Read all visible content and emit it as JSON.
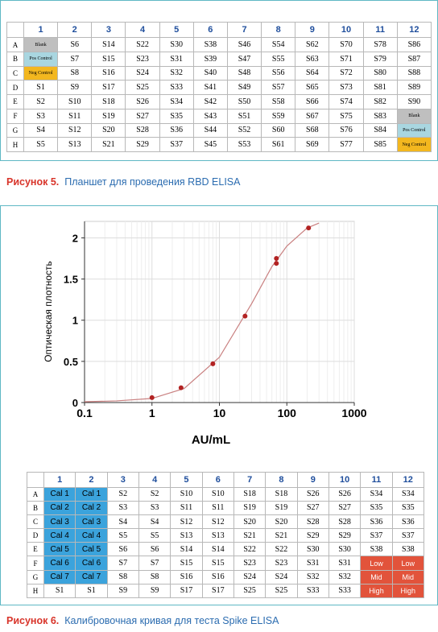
{
  "figure5": {
    "plate": {
      "columns": [
        "1",
        "2",
        "3",
        "4",
        "5",
        "6",
        "7",
        "8",
        "9",
        "10",
        "11",
        "12"
      ],
      "rows": [
        {
          "label": "A",
          "cells": [
            "Blank",
            "S6",
            "S14",
            "S22",
            "S30",
            "S38",
            "S46",
            "S54",
            "S62",
            "S70",
            "S78",
            "S86"
          ]
        },
        {
          "label": "B",
          "cells": [
            "Pos Control",
            "S7",
            "S15",
            "S23",
            "S31",
            "S39",
            "S47",
            "S55",
            "S63",
            "S71",
            "S79",
            "S87"
          ]
        },
        {
          "label": "C",
          "cells": [
            "Neg Control",
            "S8",
            "S16",
            "S24",
            "S32",
            "S40",
            "S48",
            "S56",
            "S64",
            "S72",
            "S80",
            "S88"
          ]
        },
        {
          "label": "D",
          "cells": [
            "S1",
            "S9",
            "S17",
            "S25",
            "S33",
            "S41",
            "S49",
            "S57",
            "S65",
            "S73",
            "S81",
            "S89"
          ]
        },
        {
          "label": "E",
          "cells": [
            "S2",
            "S10",
            "S18",
            "S26",
            "S34",
            "S42",
            "S50",
            "S58",
            "S66",
            "S74",
            "S82",
            "S90"
          ]
        },
        {
          "label": "F",
          "cells": [
            "S3",
            "S11",
            "S19",
            "S27",
            "S35",
            "S43",
            "S51",
            "S59",
            "S67",
            "S75",
            "S83",
            "Blank"
          ]
        },
        {
          "label": "G",
          "cells": [
            "S4",
            "S12",
            "S20",
            "S28",
            "S36",
            "S44",
            "S52",
            "S60",
            "S68",
            "S76",
            "S84",
            "Pos Control"
          ]
        },
        {
          "label": "H",
          "cells": [
            "S5",
            "S13",
            "S21",
            "S29",
            "S37",
            "S45",
            "S53",
            "S61",
            "S69",
            "S77",
            "S85",
            "Neg Control"
          ]
        }
      ]
    },
    "caption": {
      "label": "Рисунок 5.",
      "text": "Планшет для проведения RBD ELISA"
    }
  },
  "chart_data": {
    "type": "scatter",
    "xlabel": "AU/mL",
    "ylabel": "Оптическая плотность",
    "log_x": true,
    "grid": true,
    "xlim": [
      0.1,
      1000
    ],
    "xticks": [
      0.1,
      1,
      10,
      100,
      1000
    ],
    "ylim": [
      0,
      2.2
    ],
    "yticks": [
      0,
      0.5,
      1,
      1.5,
      2
    ],
    "x": [
      1,
      2.7,
      8,
      24,
      70,
      70,
      210
    ],
    "values": [
      0.06,
      0.18,
      0.47,
      1.05,
      1.69,
      1.75,
      2.12
    ],
    "color": "#b22222",
    "curve": {
      "x": [
        0.1,
        0.3,
        1,
        3,
        10,
        30,
        60,
        100,
        200,
        300
      ],
      "values": [
        0.01,
        0.02,
        0.05,
        0.17,
        0.55,
        1.2,
        1.65,
        1.9,
        2.12,
        2.18
      ],
      "color": "#c98080"
    }
  },
  "figure6": {
    "plate": {
      "columns": [
        "1",
        "2",
        "3",
        "4",
        "5",
        "6",
        "7",
        "8",
        "9",
        "10",
        "11",
        "12"
      ],
      "rows": [
        {
          "label": "A",
          "cells": [
            "Cal 1",
            "Cal 1",
            "S2",
            "S2",
            "S10",
            "S10",
            "S18",
            "S18",
            "S26",
            "S26",
            "S34",
            "S34"
          ]
        },
        {
          "label": "B",
          "cells": [
            "Cal 2",
            "Cal 2",
            "S3",
            "S3",
            "S11",
            "S11",
            "S19",
            "S19",
            "S27",
            "S27",
            "S35",
            "S35"
          ]
        },
        {
          "label": "C",
          "cells": [
            "Cal 3",
            "Cal 3",
            "S4",
            "S4",
            "S12",
            "S12",
            "S20",
            "S20",
            "S28",
            "S28",
            "S36",
            "S36"
          ]
        },
        {
          "label": "D",
          "cells": [
            "Cal 4",
            "Cal 4",
            "S5",
            "S5",
            "S13",
            "S13",
            "S21",
            "S21",
            "S29",
            "S29",
            "S37",
            "S37"
          ]
        },
        {
          "label": "E",
          "cells": [
            "Cal 5",
            "Cal 5",
            "S6",
            "S6",
            "S14",
            "S14",
            "S22",
            "S22",
            "S30",
            "S30",
            "S38",
            "S38"
          ]
        },
        {
          "label": "F",
          "cells": [
            "Cal 6",
            "Cal 6",
            "S7",
            "S7",
            "S15",
            "S15",
            "S23",
            "S23",
            "S31",
            "S31",
            "Low",
            "Low"
          ]
        },
        {
          "label": "G",
          "cells": [
            "Cal 7",
            "Cal 7",
            "S8",
            "S8",
            "S16",
            "S16",
            "S24",
            "S24",
            "S32",
            "S32",
            "Mid",
            "Mid"
          ]
        },
        {
          "label": "H",
          "cells": [
            "S1",
            "S1",
            "S9",
            "S9",
            "S17",
            "S17",
            "S25",
            "S25",
            "S33",
            "S33",
            "High",
            "High"
          ]
        }
      ]
    },
    "caption": {
      "label": "Рисунок 6.",
      "text": "Калибровочная кривая для теста Spike ELISA"
    }
  }
}
